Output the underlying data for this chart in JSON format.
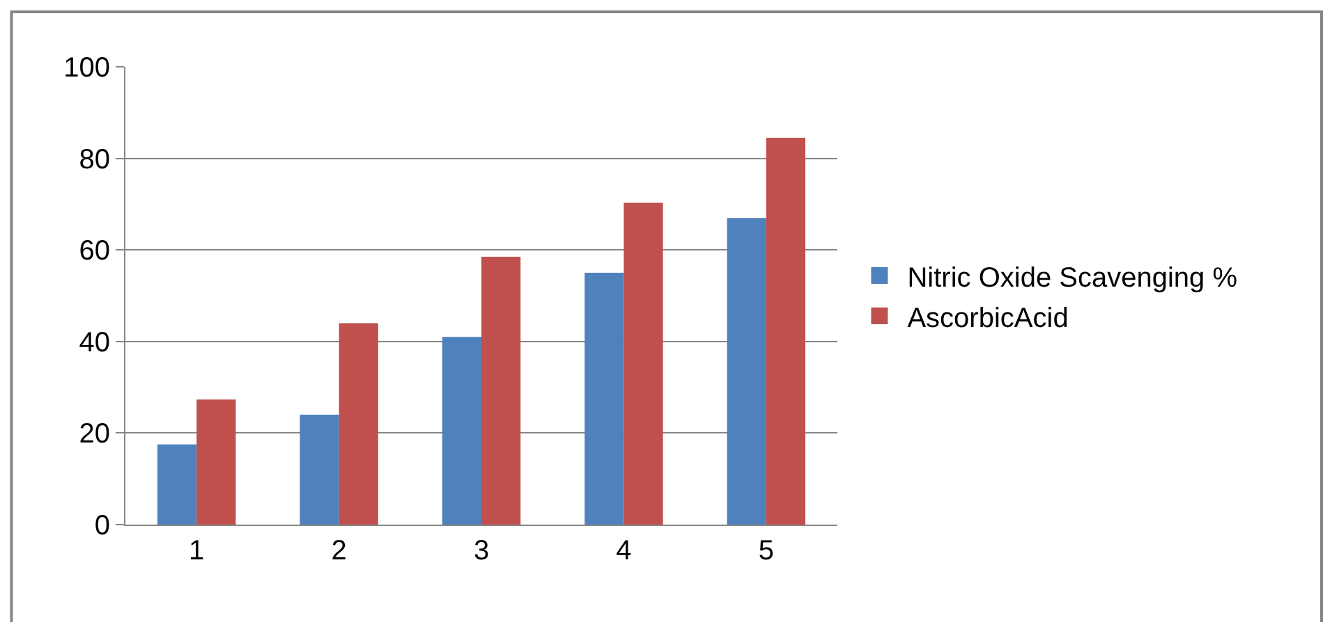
{
  "chart_data": {
    "type": "bar",
    "categories": [
      "1",
      "2",
      "3",
      "4",
      "5"
    ],
    "series": [
      {
        "name": "Nitric Oxide Scavenging %",
        "color": "#4f81bd",
        "values": [
          17.5,
          24,
          41,
          55,
          67
        ]
      },
      {
        "name": "AscorbicAcid",
        "color": "#c0504d",
        "values": [
          27.3,
          44,
          58.5,
          70.3,
          84.5
        ]
      }
    ],
    "ylim": [
      0,
      100
    ],
    "yticks": [
      0,
      20,
      40,
      60,
      80,
      100
    ],
    "grid": "y",
    "legend": "right"
  }
}
